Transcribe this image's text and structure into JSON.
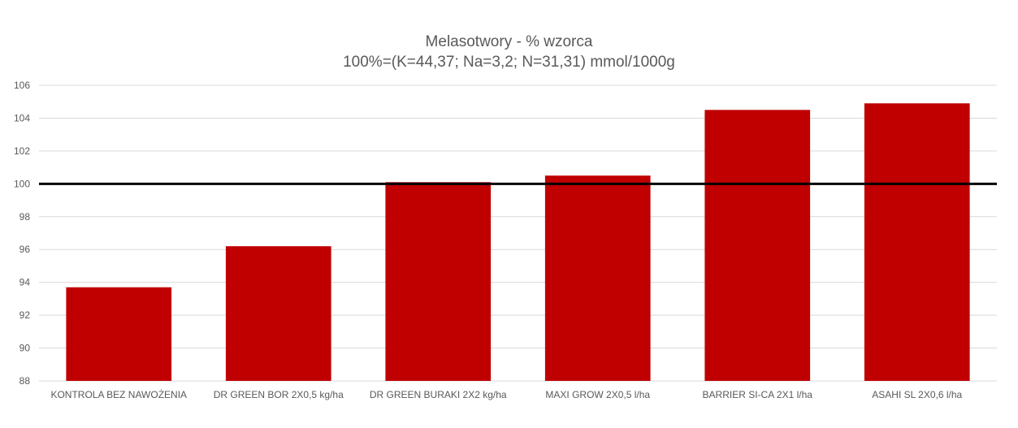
{
  "chart_data": {
    "type": "bar",
    "title": "Melasotwory - % wzorca",
    "subtitle": "100%=(K=44,37; Na=3,2; N=31,31) mmol/1000g",
    "categories": [
      "KONTROLA BEZ NAWOŻENIA",
      "DR GREEN BOR 2X0,5 kg/ha",
      "DR GREEN BURAKI 2X2 kg/ha",
      "MAXI GROW 2X0,5 l/ha",
      "BARRIER SI-CA 2X1 l/ha",
      "ASAHI SL 2X0,6 l/ha"
    ],
    "values": [
      93.7,
      96.2,
      100.1,
      100.5,
      104.5,
      104.9
    ],
    "ylim": [
      88,
      106
    ],
    "yticks": [
      "88",
      "90",
      "92",
      "94",
      "96",
      "98",
      "100",
      "102",
      "104",
      "106"
    ],
    "reference_line": 100,
    "grid": true,
    "legend": "none",
    "colors": {
      "bar": "#c00000",
      "reference": "#000000",
      "grid": "#d9d9d9",
      "text": "#595959"
    }
  }
}
